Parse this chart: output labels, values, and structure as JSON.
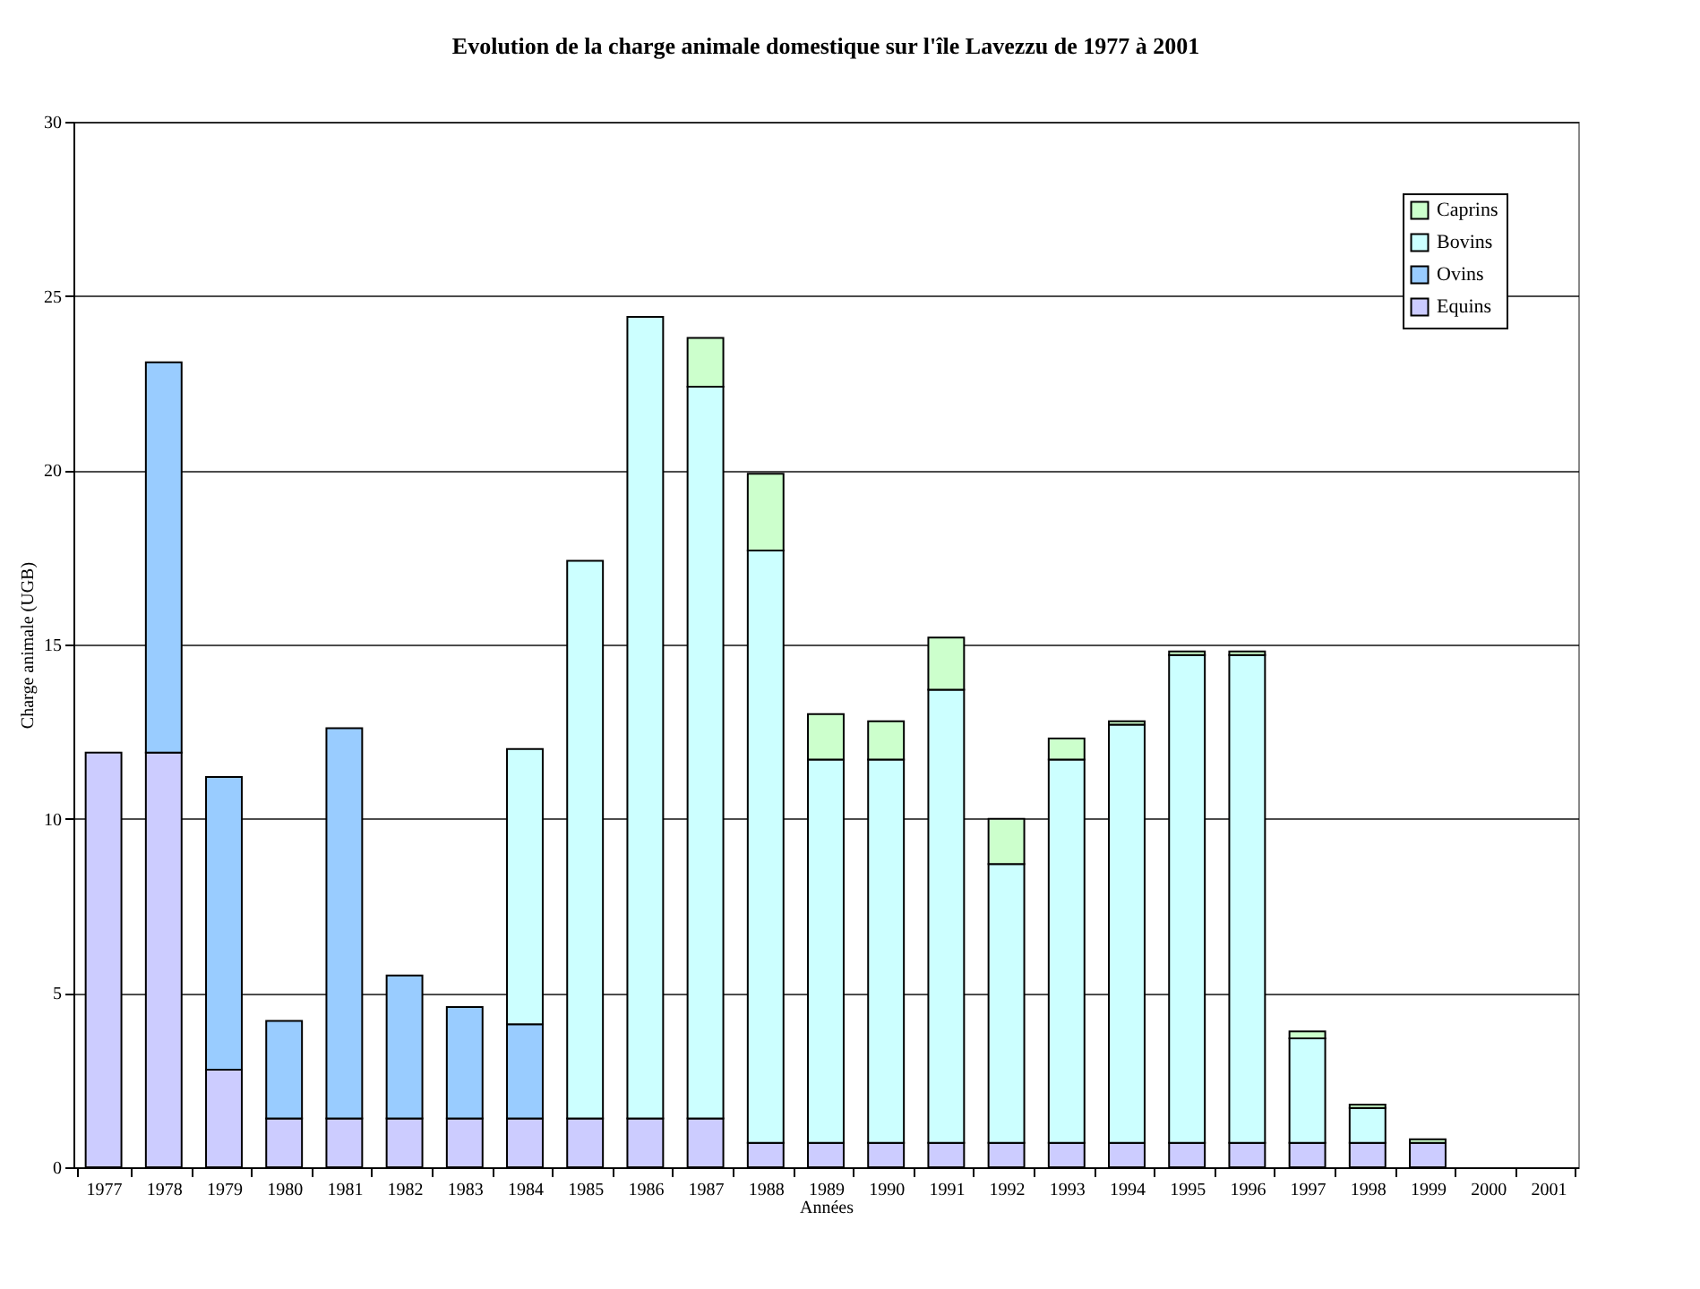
{
  "chart_data": {
    "type": "bar",
    "stacked": true,
    "title": "Evolution de la charge animale domestique sur l'île Lavezzu de 1977 à 2001",
    "xlabel": "Années",
    "ylabel": "Charge animale (UGB)",
    "categories": [
      "1977",
      "1978",
      "1979",
      "1980",
      "1981",
      "1982",
      "1983",
      "1984",
      "1985",
      "1986",
      "1987",
      "1988",
      "1989",
      "1990",
      "1991",
      "1992",
      "1993",
      "1994",
      "1995",
      "1996",
      "1997",
      "1998",
      "1999",
      "2000",
      "2001"
    ],
    "series": [
      {
        "name": "Equins",
        "color": "#ccccff",
        "values": [
          11.9,
          11.9,
          2.8,
          1.4,
          1.4,
          1.4,
          1.4,
          1.4,
          1.4,
          1.4,
          1.4,
          0.7,
          0.7,
          0.7,
          0.7,
          0.7,
          0.7,
          0.7,
          0.7,
          0.7,
          0.7,
          0.7,
          0.7,
          null,
          null
        ]
      },
      {
        "name": "Ovins",
        "color": "#99ccff",
        "values": [
          null,
          11.2,
          8.4,
          2.8,
          11.2,
          4.1,
          3.2,
          2.7,
          null,
          null,
          null,
          null,
          null,
          null,
          null,
          null,
          null,
          null,
          null,
          null,
          null,
          null,
          null,
          null,
          null
        ]
      },
      {
        "name": "Bovins",
        "color": "#ccffff",
        "values": [
          null,
          null,
          null,
          null,
          null,
          null,
          null,
          7.9,
          16.0,
          23.0,
          21.0,
          17.0,
          11.0,
          11.0,
          13.0,
          8.0,
          11.0,
          12.0,
          14.0,
          14.0,
          3.0,
          1.0,
          null,
          null,
          null
        ]
      },
      {
        "name": "Caprins",
        "color": "#ccffcc",
        "values": [
          null,
          null,
          null,
          null,
          null,
          null,
          null,
          null,
          null,
          null,
          1.4,
          2.2,
          1.3,
          1.1,
          1.5,
          1.3,
          0.6,
          0.1,
          0.1,
          0.1,
          0.2,
          0.1,
          0.1,
          null,
          null
        ]
      }
    ],
    "ylim": [
      0,
      30
    ],
    "yticks": [
      0,
      5,
      10,
      15,
      20,
      25,
      30
    ],
    "grid": "y",
    "legend": "top right"
  }
}
